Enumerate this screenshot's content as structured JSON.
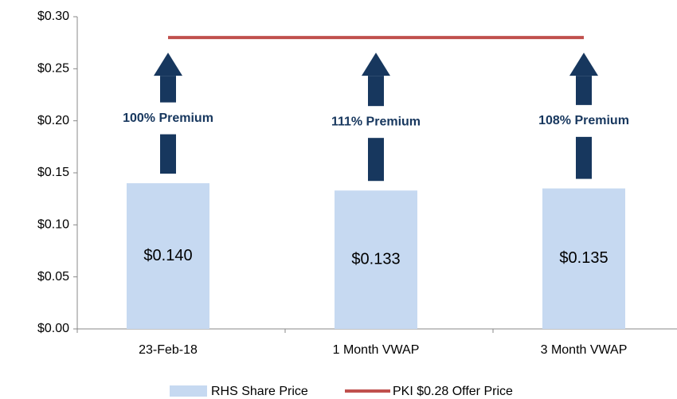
{
  "chart_data": {
    "type": "bar",
    "categories": [
      "23-Feb-18",
      "1 Month VWAP",
      "3 Month VWAP"
    ],
    "series": [
      {
        "name": "RHS Share Price",
        "type": "bar",
        "color": "#c6d9f1",
        "values": [
          0.14,
          0.133,
          0.135
        ],
        "value_labels": [
          "$0.140",
          "$0.133",
          "$0.135"
        ]
      },
      {
        "name": "PKI $0.28 Offer Price",
        "type": "line",
        "color": "#c0504d",
        "values": [
          0.28,
          0.28,
          0.28
        ]
      }
    ],
    "annotations": [
      "100% Premium",
      "111% Premium",
      "108% Premium"
    ],
    "annotation_color": "#17375e",
    "ylim": [
      0,
      0.3
    ],
    "yticks": [
      {
        "value": 0,
        "label": "$0.00"
      },
      {
        "value": 0.05,
        "label": "$0.05"
      },
      {
        "value": 0.1,
        "label": "$0.10"
      },
      {
        "value": 0.15,
        "label": "$0.15"
      },
      {
        "value": 0.2,
        "label": "$0.20"
      },
      {
        "value": 0.25,
        "label": "$0.25"
      },
      {
        "value": 0.3,
        "label": "$0.30"
      }
    ],
    "legend": "bottom"
  }
}
